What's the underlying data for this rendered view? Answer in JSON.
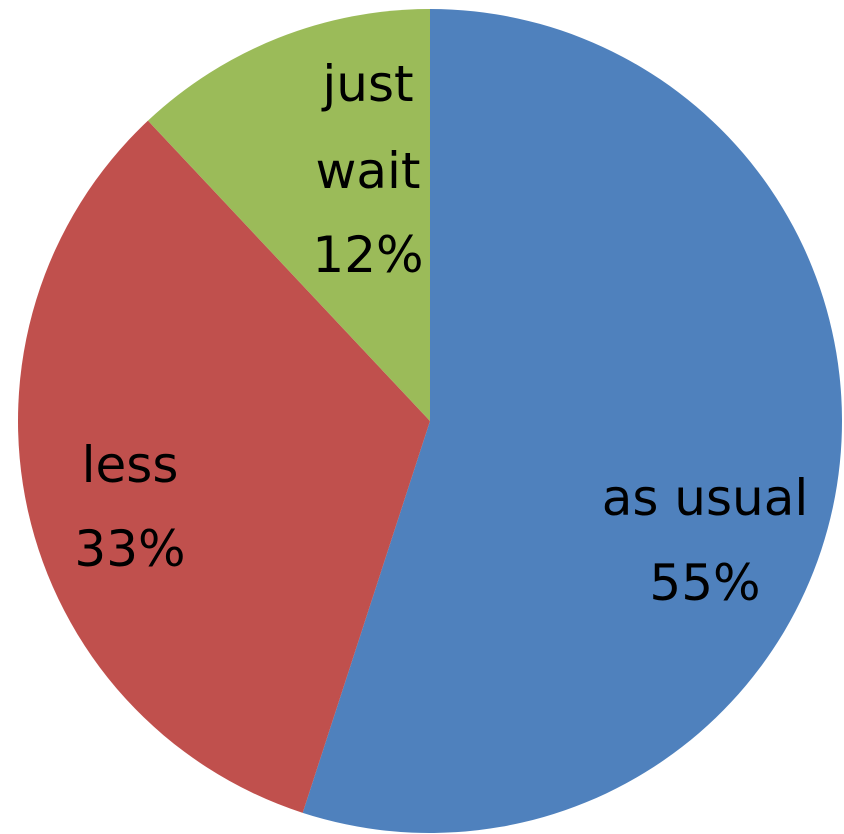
{
  "chart_data": {
    "type": "pie",
    "title": "",
    "start_angle_deg": 0,
    "direction": "clockwise",
    "legend": "none",
    "slices": [
      {
        "label": "as usual",
        "percent_label": "55%",
        "value": 55,
        "color": "#4f81bd"
      },
      {
        "label": "less",
        "percent_label": "33%",
        "value": 33,
        "color": "#c0504d"
      },
      {
        "label": "just wait",
        "percent_label": "12%",
        "value": 12,
        "color": "#9bbb59"
      }
    ]
  }
}
